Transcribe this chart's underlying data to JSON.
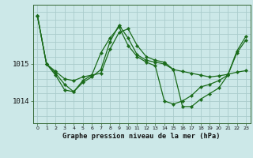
{
  "title": "Graphe pression niveau de la mer (hPa)",
  "background_color": "#cce8e8",
  "grid_color": "#aacccc",
  "line_color": "#1a6b1a",
  "marker_color": "#1a6b1a",
  "x_ticks": [
    0,
    1,
    2,
    3,
    4,
    5,
    6,
    7,
    8,
    9,
    10,
    11,
    12,
    13,
    14,
    15,
    16,
    17,
    18,
    19,
    20,
    21,
    22,
    23
  ],
  "xlim": [
    -0.5,
    23.5
  ],
  "ylim": [
    1013.4,
    1016.6
  ],
  "yticks": [
    1014,
    1015
  ],
  "series": [
    {
      "x": [
        0,
        1,
        2,
        3,
        4,
        5,
        6,
        7,
        8,
        9,
        10,
        11,
        12,
        13,
        14,
        15,
        16,
        17,
        18,
        19,
        20,
        21,
        22,
        23
      ],
      "y": [
        1016.3,
        1015.0,
        1014.8,
        1014.6,
        1014.55,
        1014.65,
        1014.7,
        1014.75,
        1015.4,
        1015.85,
        1015.95,
        1015.5,
        1015.2,
        1015.1,
        1015.05,
        1014.85,
        1014.8,
        1014.75,
        1014.7,
        1014.65,
        1014.68,
        1014.72,
        1014.78,
        1014.82
      ]
    },
    {
      "x": [
        0,
        1,
        2,
        3,
        4,
        5,
        6,
        7,
        8,
        9,
        10,
        11,
        12,
        13,
        14,
        15,
        16,
        17,
        18,
        19,
        20,
        21,
        22,
        23
      ],
      "y": [
        1016.3,
        1015.0,
        1014.75,
        1014.45,
        1014.25,
        1014.5,
        1014.65,
        1014.85,
        1015.6,
        1016.05,
        1015.7,
        1015.25,
        1015.1,
        1015.05,
        1015.0,
        1014.85,
        1013.85,
        1013.85,
        1014.05,
        1014.2,
        1014.35,
        1014.7,
        1015.3,
        1015.65
      ]
    },
    {
      "x": [
        0,
        1,
        2,
        3,
        4,
        5,
        6,
        7,
        8,
        9,
        10,
        11,
        12,
        13,
        14,
        15,
        16,
        17,
        18,
        19,
        20,
        21,
        22,
        23
      ],
      "y": [
        1016.3,
        1015.0,
        1014.7,
        1014.3,
        1014.25,
        1014.55,
        1014.7,
        1015.3,
        1015.7,
        1016.0,
        1015.5,
        1015.2,
        1015.05,
        1014.95,
        1014.0,
        1013.92,
        1014.0,
        1014.15,
        1014.38,
        1014.45,
        1014.55,
        1014.7,
        1015.35,
        1015.75
      ]
    }
  ]
}
